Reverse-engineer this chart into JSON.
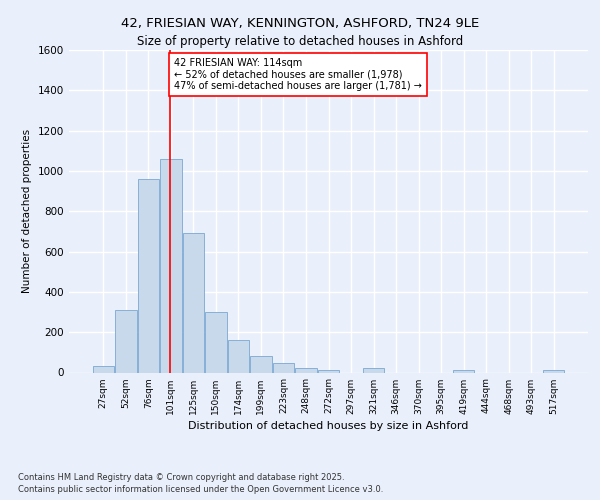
{
  "title_line1": "42, FRIESIAN WAY, KENNINGTON, ASHFORD, TN24 9LE",
  "title_line2": "Size of property relative to detached houses in Ashford",
  "xlabel": "Distribution of detached houses by size in Ashford",
  "ylabel": "Number of detached properties",
  "bar_color": "#c9d9ec",
  "bar_edge_color": "#7aa8d2",
  "categories": [
    "27sqm",
    "52sqm",
    "76sqm",
    "101sqm",
    "125sqm",
    "150sqm",
    "174sqm",
    "199sqm",
    "223sqm",
    "248sqm",
    "272sqm",
    "297sqm",
    "321sqm",
    "346sqm",
    "370sqm",
    "395sqm",
    "419sqm",
    "444sqm",
    "468sqm",
    "493sqm",
    "517sqm"
  ],
  "values": [
    30,
    310,
    960,
    1060,
    690,
    300,
    160,
    80,
    45,
    20,
    10,
    0,
    20,
    0,
    0,
    0,
    10,
    0,
    0,
    0,
    10
  ],
  "annotation_text": "42 FRIESIAN WAY: 114sqm\n← 52% of detached houses are smaller (1,978)\n47% of semi-detached houses are larger (1,781) →",
  "annotation_box_color": "white",
  "annotation_box_edge_color": "red",
  "vline_color": "red",
  "ylim": [
    0,
    1600
  ],
  "yticks": [
    0,
    200,
    400,
    600,
    800,
    1000,
    1200,
    1400,
    1600
  ],
  "background_color": "#eaf0fb",
  "grid_color": "white",
  "footer_line1": "Contains HM Land Registry data © Crown copyright and database right 2025.",
  "footer_line2": "Contains public sector information licensed under the Open Government Licence v3.0."
}
